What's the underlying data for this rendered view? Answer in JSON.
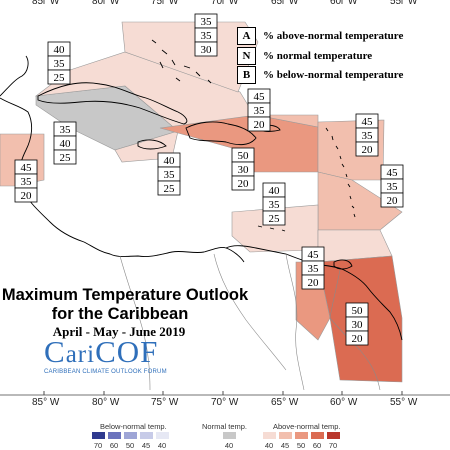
{
  "title": {
    "line1": "Maximum Temperature Outlook",
    "line2": "for the Caribbean",
    "dates": "April - May - June 2019"
  },
  "logo": {
    "name_caps": "C",
    "name_rest": "ari",
    "name_caps2": "COF",
    "subtitle": "CARIBBEAN CLIMATE OUTLOOK FORUM"
  },
  "longitudes": [
    "85° W",
    "80° W",
    "75° W",
    "70° W",
    "65° W",
    "60° W",
    "55° W"
  ],
  "legend": [
    {
      "key": "A",
      "text": "% above-normal temperature"
    },
    {
      "key": "N",
      "text": "% normal temperature"
    },
    {
      "key": "B",
      "text": "% below-normal temperature"
    }
  ],
  "colors": {
    "above_40": "#f6dcd4",
    "above_45": "#f2bfae",
    "above_50": "#ea9880",
    "above_60": "#db6b52",
    "above_70": "#b9362b",
    "normal": "#c8c8c8",
    "below_40": "#e6e8f4",
    "below_45": "#c7cbe8",
    "below_50": "#9ea5d6",
    "below_60": "#6b73bd",
    "below_70": "#2f3a8f",
    "land": "#ffffff",
    "coast": "#000000",
    "border": "#8a8a8a"
  },
  "probability_boxes": [
    {
      "id": "cuba",
      "values": [
        "40",
        "35",
        "25"
      ]
    },
    {
      "id": "bahamas",
      "values": [
        "35",
        "35",
        "30"
      ]
    },
    {
      "id": "cayman",
      "values": [
        "35",
        "40",
        "25"
      ]
    },
    {
      "id": "jamaica",
      "values": [
        "40",
        "35",
        "25"
      ]
    },
    {
      "id": "west",
      "values": [
        "45",
        "35",
        "20"
      ]
    },
    {
      "id": "hispaniola",
      "values": [
        "50",
        "30",
        "20"
      ]
    },
    {
      "id": "puertorico",
      "values": [
        "45",
        "35",
        "20"
      ]
    },
    {
      "id": "leeward",
      "values": [
        "45",
        "35",
        "20"
      ]
    },
    {
      "id": "windward",
      "values": [
        "45",
        "35",
        "20"
      ]
    },
    {
      "id": "abc",
      "values": [
        "40",
        "35",
        "25"
      ]
    },
    {
      "id": "trinidad",
      "values": [
        "45",
        "35",
        "20"
      ]
    },
    {
      "id": "guianas",
      "values": [
        "50",
        "30",
        "20"
      ]
    }
  ],
  "colorbar": {
    "below": {
      "title": "Below-normal temp.",
      "ticks": [
        "70",
        "60",
        "50",
        "45",
        "40"
      ]
    },
    "normal": {
      "title": "Normal temp.",
      "ticks": [
        "40"
      ]
    },
    "above": {
      "title": "Above-normal temp.",
      "ticks": [
        "40",
        "45",
        "50",
        "60",
        "70"
      ]
    }
  }
}
